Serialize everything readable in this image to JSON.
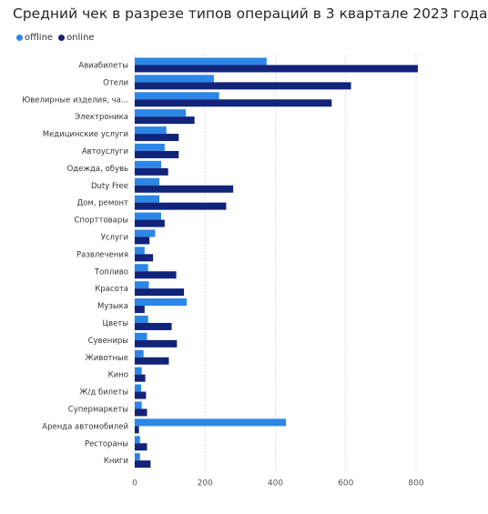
{
  "chart_data": {
    "type": "bar",
    "orientation": "horizontal",
    "title": "Средний чек в разрезе типов операций в 3 квартале 2023 года",
    "categories": [
      "Авиабилеты",
      "Отели",
      "Ювелирные изделия, ча...",
      "Электроника",
      "Медицинские услуги",
      "Автоуслуги",
      "Одежда, обувь",
      "Duty Free",
      "Дом, ремонт",
      "Спорттовары",
      "Услуги",
      "Развлечения",
      "Топливо",
      "Красота",
      "Музыка",
      "Цветы",
      "Сувениры",
      "Животные",
      "Кино",
      "Ж/д билеты",
      "Супермаркеты",
      "Аренда автомобилей",
      "Рестораны",
      "Книги"
    ],
    "series": [
      {
        "name": "offline",
        "color": "#2b86e6",
        "values": [
          375,
          225,
          240,
          145,
          90,
          85,
          75,
          70,
          70,
          75,
          58,
          28,
          38,
          40,
          148,
          38,
          35,
          25,
          20,
          18,
          20,
          430,
          15,
          15
        ]
      },
      {
        "name": "online",
        "color": "#12237a",
        "values": [
          805,
          615,
          560,
          170,
          125,
          125,
          95,
          280,
          260,
          85,
          42,
          52,
          118,
          140,
          28,
          105,
          120,
          97,
          30,
          32,
          35,
          12,
          35,
          45
        ]
      }
    ],
    "x_ticks": [
      "0",
      "200",
      "400",
      "600",
      "800"
    ],
    "xlim": [
      0,
      800
    ],
    "grid": "vertical dashed",
    "legend_position": "top-left"
  }
}
